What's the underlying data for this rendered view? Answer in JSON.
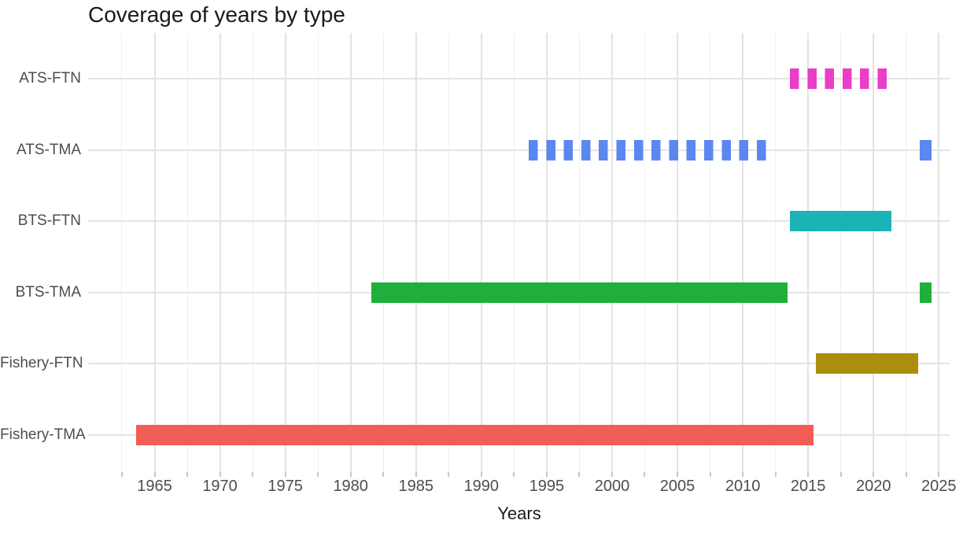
{
  "chart_data": {
    "type": "bar",
    "subtype": "horizontal-range-gantt",
    "title": "Coverage of years by type",
    "xlabel": "Years",
    "ylabel": "",
    "xlim": [
      1960,
      2026.5
    ],
    "x_major_ticks": [
      1965,
      1970,
      1975,
      1980,
      1985,
      1990,
      1995,
      2000,
      2005,
      2010,
      2015,
      2020,
      2025
    ],
    "x_minor_interval": 2.5,
    "grid": true,
    "legend": "none",
    "background": "#ffffff",
    "rows": [
      {
        "label": "ATS-FTN",
        "color": "#e93fc8",
        "pattern": "dashed",
        "ranges": [
          {
            "start": 2014,
            "end": 2021
          }
        ]
      },
      {
        "label": "ATS-TMA",
        "color": "#5b87f0",
        "pattern": "dashed",
        "ranges": [
          {
            "start": 1994,
            "end": 2012
          },
          {
            "start": 2024,
            "end": 2024
          }
        ]
      },
      {
        "label": "BTS-FTN",
        "color": "#1cb3b7",
        "pattern": "solid",
        "ranges": [
          {
            "start": 2014,
            "end": 2021
          }
        ]
      },
      {
        "label": "BTS-TMA",
        "color": "#21af3b",
        "pattern": "solid",
        "ranges": [
          {
            "start": 1982,
            "end": 2013
          },
          {
            "start": 2024,
            "end": 2024
          }
        ]
      },
      {
        "label": "Fishery-FTN",
        "color": "#ac8e0d",
        "pattern": "solid",
        "ranges": [
          {
            "start": 2016,
            "end": 2023
          }
        ]
      },
      {
        "label": "Fishery-TMA",
        "color": "#f25d55",
        "pattern": "solid",
        "ranges": [
          {
            "start": 1964,
            "end": 2015
          }
        ]
      }
    ]
  }
}
